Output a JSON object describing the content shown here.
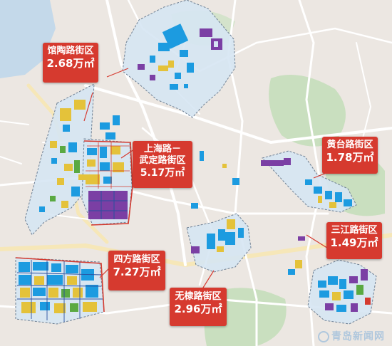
{
  "map": {
    "districts": [
      {
        "id": "guantao",
        "name": "馆陶路街区",
        "area": "2.68万㎡"
      },
      {
        "id": "shanghai",
        "name_line1": "上海路－",
        "name_line2": "武定路街区",
        "area": "5.17万㎡"
      },
      {
        "id": "huangtai",
        "name": "黄台路街区",
        "area": "1.78万㎡"
      },
      {
        "id": "sanjiang",
        "name": "三江路街区",
        "area": "1.49万㎡"
      },
      {
        "id": "sifang",
        "name": "四方路街区",
        "area": "7.27万㎡"
      },
      {
        "id": "wuli",
        "name": "无棣路街区",
        "area": "2.96万㎡"
      }
    ],
    "colors": {
      "callout": "#d63a2f",
      "zone_fill": "#d6e5f3",
      "zone_border": "#6d7f93",
      "blue": "#1c9be0",
      "yellow": "#e4c23a",
      "purple": "#7b3fa4",
      "green": "#5aa942",
      "navy": "#2a4f9e",
      "red_line": "#d43b30",
      "road": "#ffffff",
      "road_major": "#f6e7b8",
      "park": "#c9dfbf"
    }
  },
  "watermark": {
    "text": "青岛新闻网"
  }
}
